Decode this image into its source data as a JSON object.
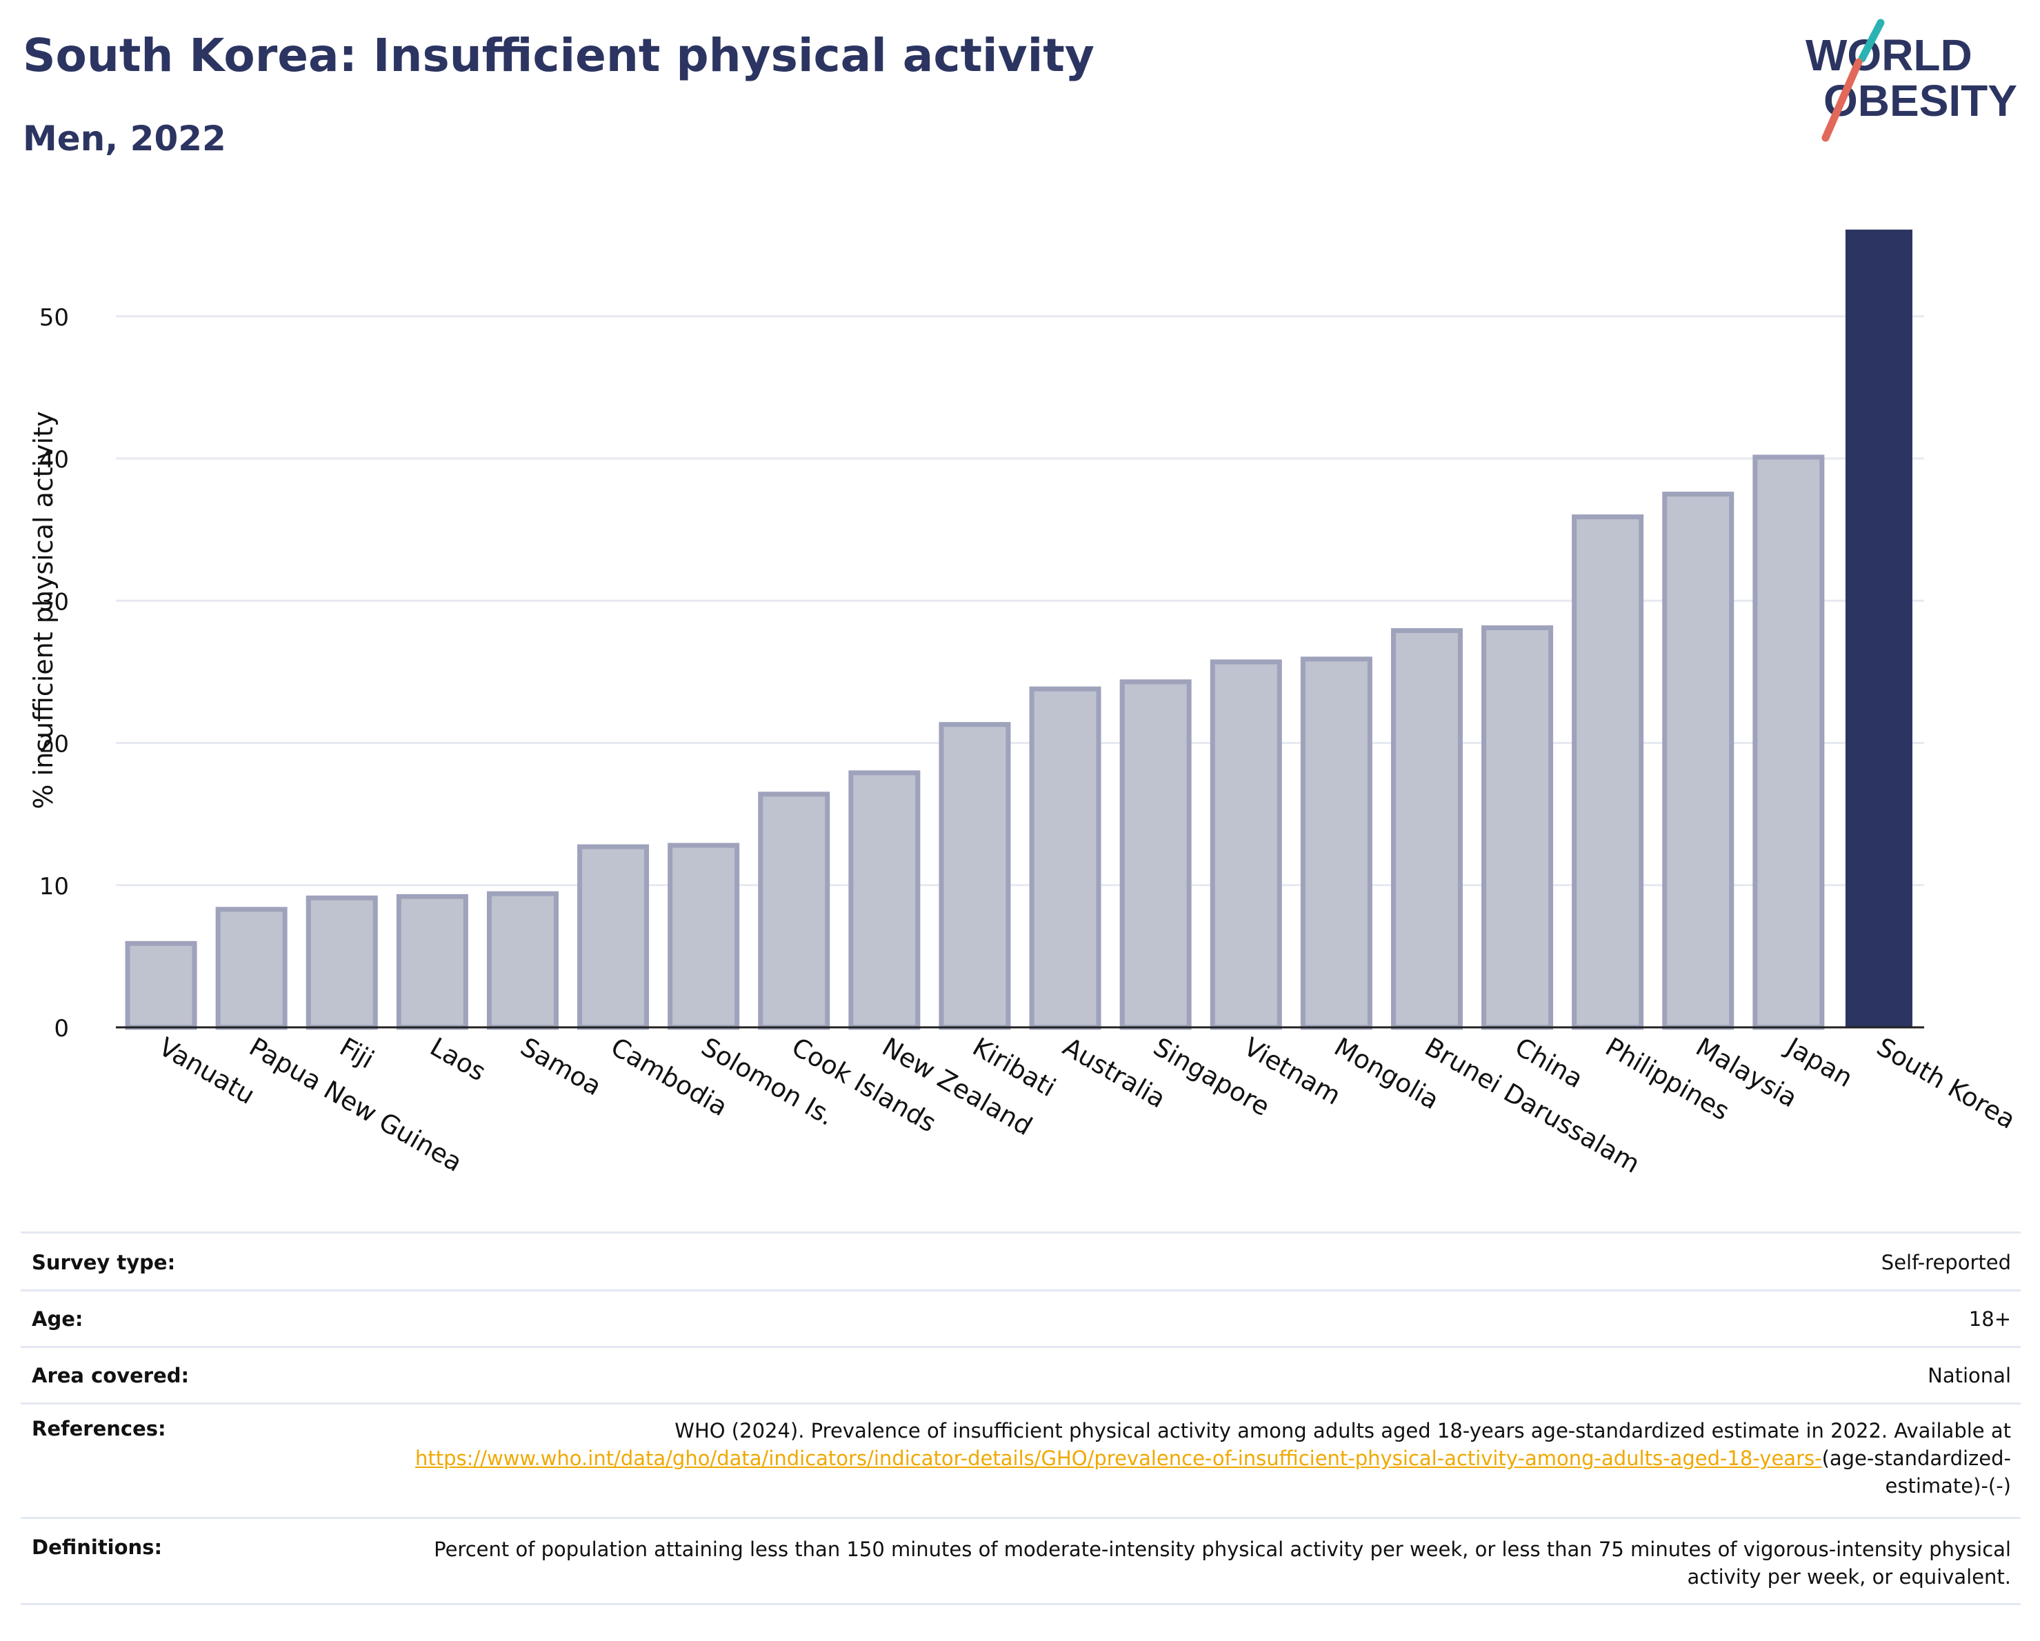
{
  "header": {
    "title": "South Korea: Insufficient physical activity",
    "subtitle": "Men, 2022"
  },
  "logo": {
    "line1": "WORLD",
    "line2": "OBESITY",
    "slash_colors": [
      "#e2685a",
      "#2bb3b3"
    ]
  },
  "chart_data": {
    "type": "bar",
    "categories": [
      "Vanuatu",
      "Papua New Guinea",
      "Fiji",
      "Laos",
      "Samoa",
      "Cambodia",
      "Solomon Is.",
      "Cook Islands",
      "New Zealand",
      "Kiribati",
      "Australia",
      "Singapore",
      "Vietnam",
      "Mongolia",
      "Brunei Darussalam",
      "China",
      "Philippines",
      "Malaysia",
      "Japan",
      "South Korea"
    ],
    "values": [
      5.9,
      8.3,
      9.1,
      9.2,
      9.4,
      12.7,
      12.8,
      16.4,
      17.9,
      21.3,
      23.8,
      24.3,
      25.7,
      25.9,
      27.9,
      28.1,
      35.9,
      37.5,
      40.1,
      56.1
    ],
    "highlight": "South Korea",
    "title": "South Korea: Insufficient physical activity",
    "xlabel": "",
    "ylabel": "% insufficient physical activity",
    "ylim": [
      0,
      56.1
    ],
    "yticks": [
      0,
      10,
      20,
      30,
      40,
      50
    ],
    "grid": true,
    "colors": {
      "bar_fill": "#bfc2cf",
      "bar_stroke": "#9ea2bb",
      "highlight": "#2c3561",
      "grid": "#e6e9f1"
    }
  },
  "info": {
    "survey_type_label": "Survey type:",
    "survey_type_value": "Self-reported",
    "age_label": "Age:",
    "age_value": "18+",
    "area_label": "Area covered:",
    "area_value": "National",
    "references_label": "References:",
    "references_text": "WHO (2024). Prevalence of insufficient physical activity among adults aged 18-years age-standardized estimate in 2022. Available at ",
    "references_link": "https://www.who.int/data/gho/data/indicators/indicator-details/GHO/prevalence-of-insufficient-physical-activity-among-adults-aged-18-years-",
    "references_suffix": "(age-standardized-estimate)-(-)",
    "definitions_label": "Definitions:",
    "definitions_text": "Percent of population attaining less than 150 minutes of moderate-intensity physical activity per week, or less than 75 minutes of vigorous-intensity physical activity per week, or equivalent."
  }
}
